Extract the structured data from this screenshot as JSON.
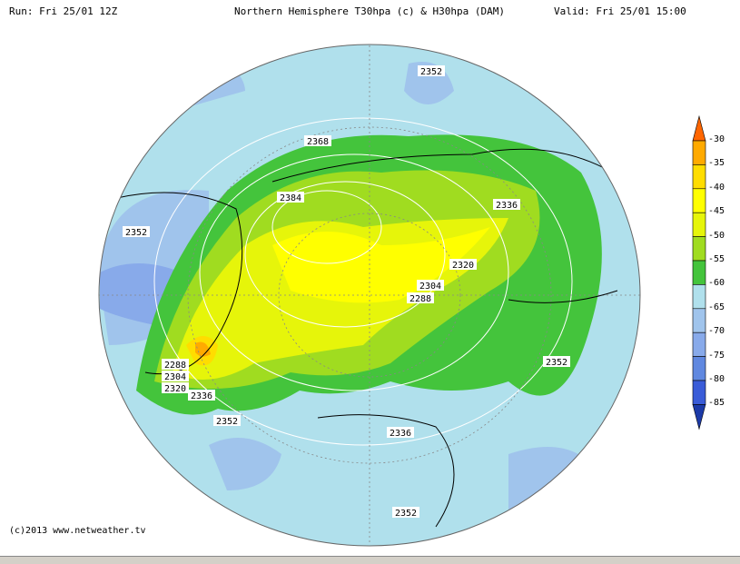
{
  "header": {
    "run": "Run: Fri 25/01 12Z",
    "title": "Northern Hemisphere T30hpa (c) & H30hpa (DAM)",
    "valid": "Valid: Fri 25/01 15:00"
  },
  "footer": "(c)2013 www.netweather.tv",
  "colorbar": {
    "ticks": [
      "-30",
      "-35",
      "-40",
      "-45",
      "-50",
      "-55",
      "-60",
      "-65",
      "-70",
      "-75",
      "-80",
      "-85"
    ],
    "colors": [
      "#ffaa00",
      "#ffdd00",
      "#ffff00",
      "#e6f50a",
      "#a0dc20",
      "#44c43c",
      "#b0e0ec",
      "#a0c4ec",
      "#88aaea",
      "#6088e0",
      "#3a5cd8"
    ],
    "top_color": "#ff6600",
    "bottom_color": "#1c3aa8"
  },
  "contour_labels": [
    "2352",
    "2368",
    "2384",
    "2336",
    "2352",
    "2320",
    "2304",
    "2288",
    "2288",
    "2304",
    "2320",
    "2336",
    "2352",
    "2352",
    "2336",
    "2352"
  ]
}
